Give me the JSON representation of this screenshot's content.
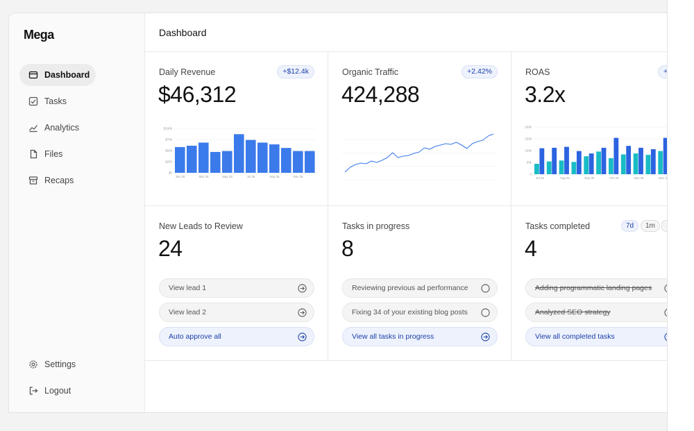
{
  "app": {
    "name": "Mega"
  },
  "sidebar": {
    "items": [
      {
        "label": "Dashboard",
        "icon": "inbox-icon",
        "active": true
      },
      {
        "label": "Tasks",
        "icon": "tasks-icon"
      },
      {
        "label": "Analytics",
        "icon": "chart-line-icon"
      },
      {
        "label": "Files",
        "icon": "files-icon"
      },
      {
        "label": "Recaps",
        "icon": "archive-icon"
      }
    ],
    "footer": [
      {
        "label": "Settings",
        "icon": "gear-icon"
      },
      {
        "label": "Logout",
        "icon": "logout-icon"
      }
    ]
  },
  "header": {
    "title": "Dashboard"
  },
  "cards": {
    "revenue": {
      "title": "Daily Revenue",
      "badge": "+$12.4k",
      "value": "$46,312"
    },
    "traffic": {
      "title": "Organic Traffic",
      "badge": "+2.42%",
      "value": "424,288"
    },
    "roas": {
      "title": "ROAS",
      "badge": "+",
      "value": "3.2x"
    },
    "leads": {
      "title": "New Leads to Review",
      "value": "24",
      "items": [
        "View lead 1",
        "View lead 2"
      ],
      "action": "Auto approve all"
    },
    "progress": {
      "title": "Tasks in progress",
      "value": "8",
      "items": [
        "Reviewing previous ad performance",
        "Fixing 34 of your existing blog posts"
      ],
      "action": "View all tasks in progress"
    },
    "completed": {
      "title": "Tasks completed",
      "value": "4",
      "ranges": [
        "7d",
        "1m"
      ],
      "items": [
        "Adding programmatic landing pages",
        "Analyzed SEO strategy"
      ],
      "action": "View all completed tasks"
    }
  },
  "colors": {
    "accent": "#3b7aea",
    "accent_text": "#1a3fa8",
    "teal": "#19bcc4",
    "blue": "#2b63e0"
  },
  "chart_data": [
    {
      "type": "bar",
      "categories": [
        "Jan 25",
        "Feb 25",
        "Mar 25",
        "Apr 25",
        "May 25",
        "Jun 25",
        "Jul 25",
        "Aug 25",
        "Sep 25",
        "Oct 25",
        "Nov 25",
        "Dec 25"
      ],
      "values": [
        58,
        61,
        68,
        47,
        49,
        87,
        74,
        68,
        64,
        56,
        49,
        49
      ],
      "ylim": [
        0,
        100
      ],
      "ytick_labels": [
        "$0",
        "$25k",
        "$50k",
        "$75k",
        "$100k"
      ],
      "xtick_labels": [
        "Jan 25",
        "Mar 25",
        "May 25",
        "Jul 25",
        "Sep 25",
        "Nov 25"
      ],
      "grid": true
    },
    {
      "type": "line",
      "values": [
        3,
        10,
        14,
        16,
        15,
        19,
        17,
        20,
        24,
        31,
        24,
        26,
        27,
        30,
        32,
        38,
        36,
        40,
        42,
        44,
        43,
        46,
        42,
        37,
        44,
        47,
        49,
        55,
        58
      ],
      "ylim": [
        0,
        70
      ],
      "grid": true
    },
    {
      "type": "bar",
      "categories": [
        "Jan 25",
        "Feb 25",
        "Mar 25",
        "Apr 25",
        "May 25",
        "Jun 25",
        "Jul 25",
        "Aug 25",
        "Sep 25",
        "Oct 25",
        "Nov 25",
        "Dec 25"
      ],
      "series": [
        {
          "values": [
            22,
            27,
            29,
            26,
            38,
            48,
            34,
            42,
            44,
            41,
            49,
            22
          ]
        },
        {
          "values": [
            55,
            56,
            58,
            49,
            44,
            56,
            77,
            60,
            56,
            53,
            77,
            50
          ]
        }
      ],
      "ylim": [
        0,
        100
      ],
      "ytick_labels": [
        "0",
        "50k",
        "100k",
        "150k",
        "200k"
      ],
      "xtick_labels": [
        "Jul 25",
        "Aug 25",
        "Sep 25",
        "Oct 25",
        "Nov 25",
        "Dec 25"
      ],
      "grid": true
    }
  ]
}
